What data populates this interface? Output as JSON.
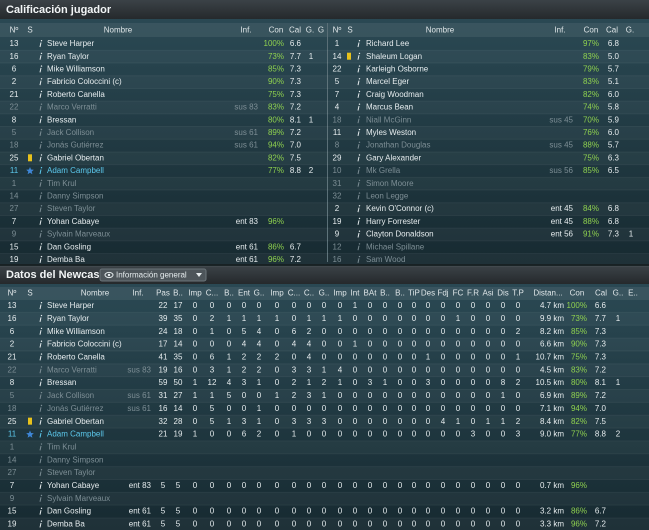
{
  "rating": {
    "title": "Calificación jugador",
    "home_columns": [
      "Nº",
      "S",
      "Nombre",
      "Inf.",
      "Con",
      "Cal",
      "G.",
      "G"
    ],
    "away_columns": [
      "Nº",
      "S",
      "Nombre",
      "Inf.",
      "Con",
      "Cal",
      "G."
    ],
    "con_color": "#8fd14f",
    "home": [
      {
        "no": "13",
        "name": "Steve Harper",
        "con": "100%",
        "cal": "6.6"
      },
      {
        "no": "16",
        "name": "Ryan Taylor",
        "con": "73%",
        "cal": "7.7",
        "g": "1"
      },
      {
        "no": "6",
        "name": "Mike Williamson",
        "con": "85%",
        "cal": "7.3"
      },
      {
        "no": "2",
        "name": "Fabricio Coloccini (c)",
        "con": "90%",
        "cal": "7.3"
      },
      {
        "no": "21",
        "name": "Roberto Canella",
        "con": "75%",
        "cal": "7.3"
      },
      {
        "no": "22",
        "name": "Marco Verratti",
        "inf": "sus 83",
        "con": "83%",
        "cal": "7.2",
        "color": "#7d8e95"
      },
      {
        "no": "8",
        "name": "Bressan",
        "con": "80%",
        "cal": "8.1",
        "g": "1"
      },
      {
        "no": "5",
        "name": "Jack Collison",
        "inf": "sus 61",
        "con": "89%",
        "cal": "7.2",
        "color": "#7d8e95"
      },
      {
        "no": "18",
        "name": "Jonás Gutiérrez",
        "inf": "sus 61",
        "con": "94%",
        "cal": "7.0",
        "color": "#7d8e95"
      },
      {
        "no": "25",
        "name": "Gabriel Obertan",
        "con": "82%",
        "cal": "7.5",
        "card": "#e8c21c"
      },
      {
        "no": "11",
        "name": "Adam Campbell",
        "con": "77%",
        "cal": "8.8",
        "g": "2",
        "star": "#3f86d6",
        "color": "#5cc8ec"
      },
      {
        "no": "1",
        "name": "Tim Krul",
        "color": "#7d8e95"
      },
      {
        "no": "14",
        "name": "Danny Simpson",
        "color": "#7d8e95"
      },
      {
        "no": "27",
        "name": "Steven Taylor",
        "color": "#7d8e95"
      },
      {
        "no": "7",
        "name": "Yohan Cabaye",
        "inf": "ent 83",
        "con": "96%"
      },
      {
        "no": "9",
        "name": "Sylvain Marveaux",
        "color": "#7d8e95"
      },
      {
        "no": "15",
        "name": "Dan Gosling",
        "inf": "ent 61",
        "con": "86%",
        "cal": "6.7"
      },
      {
        "no": "19",
        "name": "Demba Ba",
        "inf": "ent 61",
        "con": "96%",
        "cal": "7.2"
      }
    ],
    "away": [
      {
        "no": "1",
        "name": "Richard Lee",
        "con": "97%",
        "cal": "6.8"
      },
      {
        "no": "14",
        "name": "Shaleum Logan",
        "con": "83%",
        "cal": "5.0",
        "card": "#e8c21c"
      },
      {
        "no": "22",
        "name": "Karleigh Osborne",
        "con": "79%",
        "cal": "5.7"
      },
      {
        "no": "5",
        "name": "Marcel Eger",
        "con": "83%",
        "cal": "5.1"
      },
      {
        "no": "7",
        "name": "Craig Woodman",
        "con": "82%",
        "cal": "6.0"
      },
      {
        "no": "4",
        "name": "Marcus Bean",
        "con": "74%",
        "cal": "5.8"
      },
      {
        "no": "18",
        "name": "Niall McGinn",
        "inf": "sus 45",
        "con": "70%",
        "cal": "5.9",
        "color": "#7d8e95"
      },
      {
        "no": "11",
        "name": "Myles Weston",
        "con": "76%",
        "cal": "6.0"
      },
      {
        "no": "8",
        "name": "Jonathan Douglas",
        "inf": "sus 45",
        "con": "88%",
        "cal": "5.7",
        "color": "#7d8e95"
      },
      {
        "no": "29",
        "name": "Gary Alexander",
        "con": "75%",
        "cal": "6.3"
      },
      {
        "no": "10",
        "name": "Mk Grella",
        "inf": "sus 56",
        "con": "85%",
        "cal": "6.5",
        "color": "#7d8e95"
      },
      {
        "no": "31",
        "name": "Simon Moore",
        "color": "#7d8e95"
      },
      {
        "no": "32",
        "name": "Leon Legge",
        "color": "#7d8e95"
      },
      {
        "no": "2",
        "name": "Kevin O'Connor (c)",
        "inf": "ent 45",
        "con": "84%",
        "cal": "6.8"
      },
      {
        "no": "19",
        "name": "Harry Forrester",
        "inf": "ent 45",
        "con": "88%",
        "cal": "6.8"
      },
      {
        "no": "9",
        "name": "Clayton Donaldson",
        "inf": "ent 56",
        "con": "91%",
        "cal": "7.3",
        "g": "1"
      },
      {
        "no": "12",
        "name": "Michael Spillane",
        "color": "#7d8e95"
      },
      {
        "no": "16",
        "name": "Sam Wood",
        "color": "#7d8e95"
      }
    ]
  },
  "stats": {
    "title": "Datos del Newcastle",
    "view": "Información general",
    "con_color": "#8fd14f",
    "columns": [
      "Nº",
      "S",
      "Nombre",
      "Inf.",
      "Pas",
      "B..",
      "Imp",
      "C...",
      "B..",
      "Ent",
      "G..",
      "Imp",
      "C...",
      "C..",
      "G..",
      "Imp",
      "Int",
      "BAt",
      "B..",
      "B..",
      "TiP",
      "Des",
      "Fdj",
      "FC",
      "F.R",
      "Asi",
      "Dis",
      "T.P",
      "Distan...",
      "Con",
      "Cal",
      "G..",
      "E.."
    ],
    "rows": [
      {
        "no": "13",
        "name": "Steve Harper",
        "stats": [
          "22",
          "17",
          "0",
          "0",
          "0",
          "0",
          "0",
          "0",
          "0",
          "0",
          "0",
          "0",
          "1",
          "0",
          "0",
          "0",
          "0",
          "0",
          "0",
          "0",
          "0",
          "0",
          "0",
          "0"
        ],
        "dist": "4.7 km",
        "con": "100%",
        "cal": "6.6"
      },
      {
        "no": "16",
        "name": "Ryan Taylor",
        "stats": [
          "39",
          "35",
          "0",
          "2",
          "1",
          "1",
          "1",
          "1",
          "0",
          "1",
          "1",
          "1",
          "0",
          "0",
          "0",
          "0",
          "0",
          "0",
          "0",
          "1",
          "0",
          "0",
          "0",
          "0"
        ],
        "dist": "9.9 km",
        "con": "73%",
        "cal": "7.7",
        "g": "1"
      },
      {
        "no": "6",
        "name": "Mike Williamson",
        "stats": [
          "24",
          "18",
          "0",
          "1",
          "0",
          "5",
          "4",
          "0",
          "6",
          "2",
          "0",
          "0",
          "0",
          "0",
          "0",
          "0",
          "0",
          "0",
          "0",
          "0",
          "0",
          "0",
          "0",
          "2"
        ],
        "dist": "8.2 km",
        "con": "85%",
        "cal": "7.3"
      },
      {
        "no": "2",
        "name": "Fabricio Coloccini (c)",
        "stats": [
          "17",
          "14",
          "0",
          "0",
          "0",
          "4",
          "4",
          "0",
          "4",
          "4",
          "0",
          "0",
          "1",
          "0",
          "0",
          "0",
          "0",
          "0",
          "0",
          "0",
          "0",
          "0",
          "0",
          "0"
        ],
        "dist": "6.6 km",
        "con": "90%",
        "cal": "7.3"
      },
      {
        "no": "21",
        "name": "Roberto Canella",
        "stats": [
          "41",
          "35",
          "0",
          "6",
          "1",
          "2",
          "2",
          "2",
          "0",
          "4",
          "0",
          "0",
          "0",
          "0",
          "0",
          "0",
          "0",
          "1",
          "0",
          "0",
          "0",
          "0",
          "0",
          "1"
        ],
        "dist": "10.7 km",
        "con": "75%",
        "cal": "7.3"
      },
      {
        "no": "22",
        "name": "Marco Verratti",
        "inf": "sus 83",
        "stats": [
          "19",
          "16",
          "0",
          "3",
          "1",
          "2",
          "2",
          "0",
          "3",
          "3",
          "1",
          "4",
          "0",
          "0",
          "0",
          "0",
          "0",
          "0",
          "0",
          "0",
          "0",
          "0",
          "0",
          "0"
        ],
        "dist": "4.5 km",
        "con": "83%",
        "cal": "7.2",
        "color": "#7d8e95"
      },
      {
        "no": "8",
        "name": "Bressan",
        "stats": [
          "59",
          "50",
          "1",
          "12",
          "4",
          "3",
          "1",
          "0",
          "2",
          "1",
          "2",
          "1",
          "0",
          "3",
          "1",
          "0",
          "0",
          "3",
          "0",
          "0",
          "0",
          "0",
          "8",
          "2"
        ],
        "dist": "10.5 km",
        "con": "80%",
        "cal": "8.1",
        "g": "1"
      },
      {
        "no": "5",
        "name": "Jack Collison",
        "inf": "sus 61",
        "stats": [
          "31",
          "27",
          "1",
          "1",
          "5",
          "0",
          "0",
          "1",
          "2",
          "3",
          "1",
          "0",
          "0",
          "0",
          "0",
          "0",
          "0",
          "0",
          "0",
          "0",
          "0",
          "0",
          "1",
          "0"
        ],
        "dist": "6.9 km",
        "con": "89%",
        "cal": "7.2",
        "color": "#7d8e95"
      },
      {
        "no": "18",
        "name": "Jonás Gutiérrez",
        "inf": "sus 61",
        "stats": [
          "16",
          "14",
          "0",
          "5",
          "0",
          "0",
          "1",
          "0",
          "0",
          "0",
          "0",
          "0",
          "0",
          "0",
          "0",
          "0",
          "0",
          "0",
          "0",
          "0",
          "0",
          "0",
          "0",
          "0"
        ],
        "dist": "7.1 km",
        "con": "94%",
        "cal": "7.0",
        "color": "#7d8e95"
      },
      {
        "no": "25",
        "name": "Gabriel Obertan",
        "card": "#e8c21c",
        "stats": [
          "32",
          "28",
          "0",
          "5",
          "1",
          "3",
          "1",
          "0",
          "3",
          "3",
          "3",
          "0",
          "0",
          "0",
          "0",
          "0",
          "0",
          "0",
          "4",
          "1",
          "0",
          "1",
          "1",
          "2"
        ],
        "dist": "8.4 km",
        "con": "82%",
        "cal": "7.5"
      },
      {
        "no": "11",
        "name": "Adam Campbell",
        "star": "#3f86d6",
        "color": "#5cc8ec",
        "stats": [
          "21",
          "19",
          "1",
          "0",
          "0",
          "6",
          "2",
          "0",
          "1",
          "0",
          "0",
          "0",
          "0",
          "0",
          "0",
          "0",
          "0",
          "0",
          "0",
          "0",
          "3",
          "0",
          "0",
          "3"
        ],
        "dist": "9.0 km",
        "con": "77%",
        "cal": "8.8",
        "g": "2"
      },
      {
        "no": "1",
        "name": "Tim Krul",
        "color": "#7d8e95"
      },
      {
        "no": "14",
        "name": "Danny Simpson",
        "color": "#7d8e95"
      },
      {
        "no": "27",
        "name": "Steven Taylor",
        "color": "#7d8e95"
      },
      {
        "no": "7",
        "name": "Yohan Cabaye",
        "inf": "ent 83",
        "stats": [
          "5",
          "5",
          "0",
          "0",
          "0",
          "0",
          "0",
          "0",
          "0",
          "0",
          "0",
          "0",
          "0",
          "0",
          "0",
          "0",
          "0",
          "0",
          "0",
          "0",
          "0",
          "0",
          "0",
          "0"
        ],
        "dist": "0.7 km",
        "con": "96%"
      },
      {
        "no": "9",
        "name": "Sylvain Marveaux",
        "color": "#7d8e95"
      },
      {
        "no": "15",
        "name": "Dan Gosling",
        "inf": "ent 61",
        "stats": [
          "5",
          "5",
          "0",
          "0",
          "0",
          "0",
          "0",
          "0",
          "0",
          "0",
          "0",
          "0",
          "0",
          "0",
          "0",
          "0",
          "0",
          "0",
          "0",
          "0",
          "0",
          "0",
          "0",
          "0"
        ],
        "dist": "3.2 km",
        "con": "86%",
        "cal": "6.7"
      },
      {
        "no": "19",
        "name": "Demba Ba",
        "inf": "ent 61",
        "stats": [
          "5",
          "5",
          "0",
          "0",
          "0",
          "0",
          "0",
          "0",
          "0",
          "0",
          "0",
          "0",
          "0",
          "0",
          "0",
          "0",
          "0",
          "0",
          "0",
          "0",
          "0",
          "0",
          "0",
          "0"
        ],
        "dist": "3.3 km",
        "con": "96%",
        "cal": "7.2"
      }
    ]
  }
}
